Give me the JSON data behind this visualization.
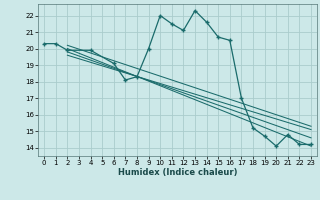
{
  "title": "",
  "xlabel": "Humidex (Indice chaleur)",
  "bg_color": "#cce8e8",
  "grid_color": "#aacccc",
  "line_color": "#1a6b6b",
  "xlim": [
    -0.5,
    23.5
  ],
  "ylim": [
    13.5,
    22.7
  ],
  "xticks": [
    0,
    1,
    2,
    3,
    4,
    5,
    6,
    7,
    8,
    9,
    10,
    11,
    12,
    13,
    14,
    15,
    16,
    17,
    18,
    19,
    20,
    21,
    22,
    23
  ],
  "yticks": [
    14,
    15,
    16,
    17,
    18,
    19,
    20,
    21,
    22
  ],
  "main_x": [
    0,
    1,
    2,
    4,
    6,
    7,
    8,
    9,
    10,
    11,
    12,
    13,
    14,
    15,
    16,
    17,
    18,
    19,
    20,
    21,
    22,
    23
  ],
  "main_y": [
    20.3,
    20.3,
    19.9,
    19.9,
    19.1,
    18.1,
    18.3,
    20.0,
    22.0,
    21.5,
    21.1,
    22.3,
    21.6,
    20.7,
    20.5,
    17.0,
    15.2,
    14.7,
    14.1,
    14.8,
    14.2,
    14.2
  ],
  "trend_lines": [
    {
      "x": [
        2,
        23
      ],
      "y": [
        20.0,
        14.1
      ]
    },
    {
      "x": [
        2,
        23
      ],
      "y": [
        19.8,
        14.6
      ]
    },
    {
      "x": [
        2,
        23
      ],
      "y": [
        19.6,
        15.1
      ]
    },
    {
      "x": [
        2,
        23
      ],
      "y": [
        20.2,
        15.3
      ]
    }
  ]
}
